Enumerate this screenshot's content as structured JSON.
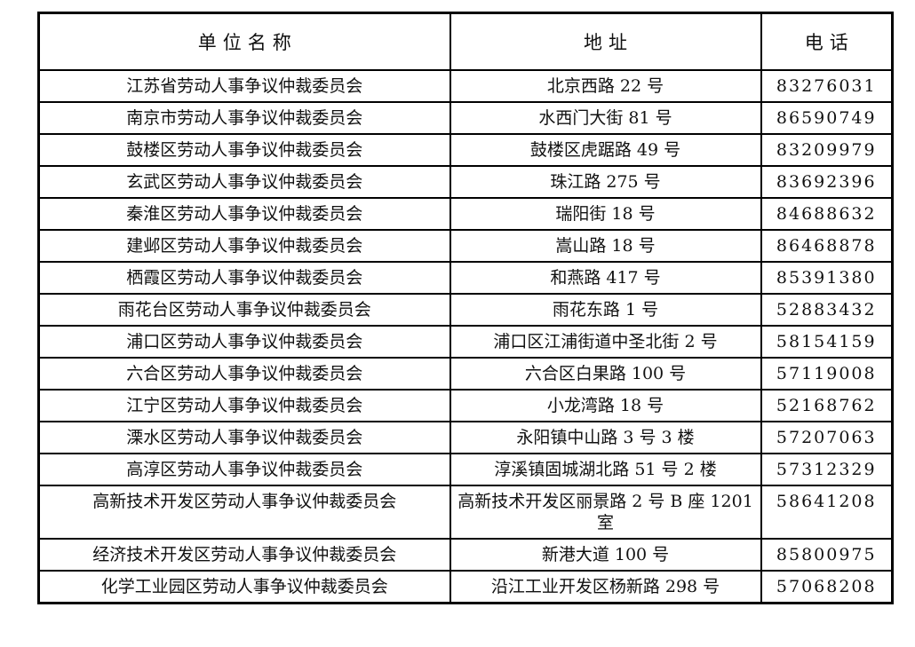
{
  "page": {
    "background_color": "#ffffff",
    "text_color": "#111111",
    "border_color": "#000000"
  },
  "table": {
    "columns": [
      {
        "key": "name",
        "label": "单位名称"
      },
      {
        "key": "address",
        "label": "地址"
      },
      {
        "key": "phone",
        "label": "电话"
      }
    ],
    "rows": [
      {
        "name": "江苏省劳动人事争议仲裁委员会",
        "address": "北京西路 22 号",
        "phone": "83276031"
      },
      {
        "name": "南京市劳动人事争议仲裁委员会",
        "address": "水西门大街 81 号",
        "phone": "86590749"
      },
      {
        "name": "鼓楼区劳动人事争议仲裁委员会",
        "address": "鼓楼区虎踞路 49 号",
        "phone": "83209979"
      },
      {
        "name": "玄武区劳动人事争议仲裁委员会",
        "address": "珠江路 275 号",
        "phone": "83692396"
      },
      {
        "name": "秦淮区劳动人事争议仲裁委员会",
        "address": "瑞阳街 18 号",
        "phone": "84688632"
      },
      {
        "name": "建邺区劳动人事争议仲裁委员会",
        "address": "嵩山路 18 号",
        "phone": "86468878"
      },
      {
        "name": "栖霞区劳动人事争议仲裁委员会",
        "address": "和燕路 417 号",
        "phone": "85391380"
      },
      {
        "name": "雨花台区劳动人事争议仲裁委员会",
        "address": "雨花东路 1 号",
        "phone": "52883432"
      },
      {
        "name": "浦口区劳动人事争议仲裁委员会",
        "address": "浦口区江浦街道中圣北街 2 号",
        "phone": "58154159"
      },
      {
        "name": "六合区劳动人事争议仲裁委员会",
        "address": "六合区白果路 100 号",
        "phone": "57119008"
      },
      {
        "name": "江宁区劳动人事争议仲裁委员会",
        "address": "小龙湾路 18 号",
        "phone": "52168762"
      },
      {
        "name": "溧水区劳动人事争议仲裁委员会",
        "address": "永阳镇中山路 3 号 3 楼",
        "phone": "57207063"
      },
      {
        "name": "高淳区劳动人事争议仲裁委员会",
        "address": "淳溪镇固城湖北路 51 号 2 楼",
        "phone": "57312329"
      },
      {
        "name": "高新技术开发区劳动人事争议仲裁委员会",
        "address": "高新技术开发区丽景路 2 号 B 座 1201 室",
        "phone": "58641208"
      },
      {
        "name": "经济技术开发区劳动人事争议仲裁委员会",
        "address": "新港大道 100 号",
        "phone": "85800975"
      },
      {
        "name": "化学工业园区劳动人事争议仲裁委员会",
        "address": "沿江工业开发区杨新路 298 号",
        "phone": "57068208"
      }
    ]
  }
}
